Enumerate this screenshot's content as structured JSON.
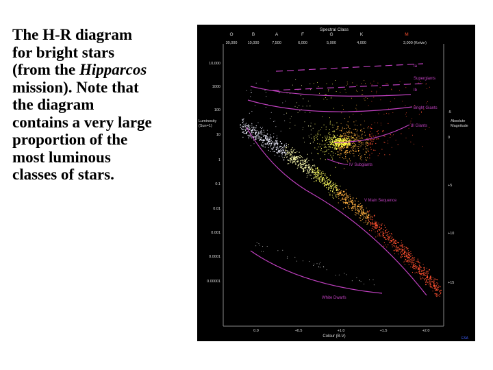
{
  "caption": {
    "line1": "The H-R diagram",
    "line2": "for bright stars",
    "line3a": "(from the ",
    "line3b": "Hipparcos",
    "line4": "mission). Note that",
    "line5": "the diagram",
    "line6": "contains a very large",
    "line7": "proportion of the",
    "line8": "most luminous",
    "line9": "classes of stars."
  },
  "diagram": {
    "top_title": "Spectral Class",
    "spectral_classes": [
      "O",
      "B",
      "A",
      "F",
      "G",
      "K",
      "M"
    ],
    "temperatures": [
      "30,000",
      "10,000",
      "7,500",
      "6,000",
      "5,000",
      "4,000",
      "3,000 (Kelvin)"
    ],
    "left_axis_title": [
      "Luminosity",
      "(Sun=1)"
    ],
    "luminosity_ticks": [
      "10,000",
      "1000",
      "100",
      "10",
      "1",
      "0.1",
      "0.01",
      "0.001",
      "0.0001",
      "0.00001"
    ],
    "right_axis_title": [
      "Absolute",
      "Magnitude"
    ],
    "magnitude_ticks": [
      "-5",
      "0",
      "+5",
      "+10",
      "+15"
    ],
    "bottom_axis_title": "Colour (B-V)",
    "colour_ticks": [
      "0.0",
      "+0.5",
      "+1.0",
      "+1.5",
      "+2.0"
    ],
    "class_labels": [
      "Ia",
      "Supergiants",
      "Ib",
      "Bright Giants",
      "III Giants",
      "IV Subgiants",
      "V Main Sequence",
      "White Dwarfs"
    ],
    "credit": "ESA",
    "colors": {
      "background": "#000000",
      "axis_text": "#dddddd",
      "magenta": "#c040c0",
      "hot_stars": "#e8e8ff",
      "sun_like": "#ffff60",
      "cool_stars": "#ff5030",
      "credit": "#4060ff"
    }
  }
}
